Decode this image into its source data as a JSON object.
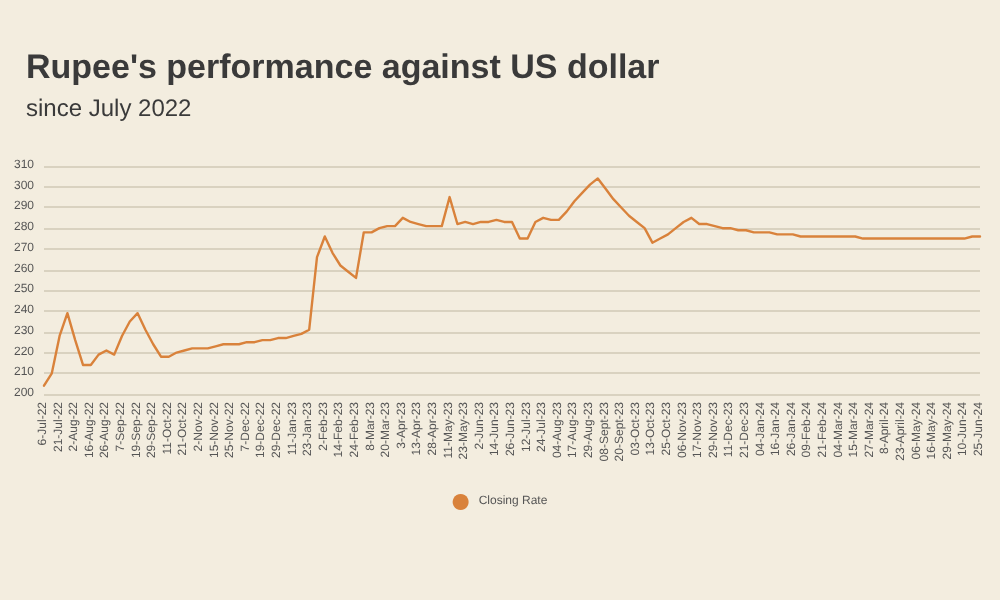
{
  "chart_data": {
    "type": "line",
    "title": "Rupee's performance against US dollar",
    "subtitle": "since July 2022",
    "categories": [
      "6-Jul-22",
      null,
      "21-Jul-22",
      null,
      "2-Aug-22",
      null,
      "16-Aug-22",
      null,
      "26-Aug-22",
      null,
      "7-Sep-22",
      null,
      "19-Sep-22",
      null,
      "29-Sep-22",
      null,
      "11-Oct-22",
      null,
      "21-Oct-22",
      null,
      "2-Nov-22",
      null,
      "15-Nov-22",
      null,
      "25-Nov-22",
      null,
      "7-Dec-22",
      null,
      "19-Dec-22",
      null,
      "29-Dec-22",
      null,
      "11-Jan-23",
      null,
      "23-Jan-23",
      null,
      "2-Feb-23",
      null,
      "14-Feb-23",
      null,
      "24-Feb-23",
      null,
      "8-Mar-23",
      null,
      "20-Mar-23",
      null,
      "3-Apr-23",
      null,
      "13-Apr-23",
      null,
      "28-Apr-23",
      null,
      "11-May-23",
      null,
      "23-May-23",
      null,
      "2-Jun-23",
      null,
      "14-Jun-23",
      null,
      "26-Jun-23",
      null,
      "12-Jul-23",
      null,
      "24-Jul-23",
      null,
      "04-Aug-23",
      null,
      "17-Aug-23",
      null,
      "29-Aug-23",
      null,
      "08-Sept-23",
      null,
      "20-Sept-23",
      null,
      "03-Oct-23",
      null,
      "13-Oct-23",
      null,
      "25-Oct-23",
      null,
      "06-Nov-23",
      null,
      "17-Nov-23",
      null,
      "29-Nov-23",
      null,
      "11-Dec-23",
      null,
      "21-Dec-23",
      null,
      "04-Jan-24",
      null,
      "16-Jan-24",
      null,
      "26-Jan-24",
      null,
      "09-Feb-24",
      null,
      "21-Feb-24",
      null,
      "04-Mar-24",
      null,
      "15-Mar-24",
      null,
      "27-Mar-24",
      null,
      "8-April-24",
      null,
      "23-April-24",
      null,
      "06-May-24",
      null,
      "16-May-24",
      null,
      "29-May-24",
      null,
      "10-Jun-24",
      null,
      "25-Jun-24"
    ],
    "series": [
      {
        "name": "Closing Rate",
        "color": "#d9823b",
        "values": [
          204,
          210,
          228,
          239,
          226,
          214,
          214,
          219,
          221,
          219,
          228,
          235,
          239,
          231,
          224,
          218,
          218,
          220,
          221,
          222,
          222,
          222,
          223,
          224,
          224,
          224,
          225,
          225,
          226,
          226,
          227,
          227,
          228,
          229,
          231,
          266,
          276,
          268,
          262,
          259,
          256,
          278,
          278,
          280,
          281,
          281,
          285,
          283,
          282,
          281,
          281,
          281,
          295,
          282,
          283,
          282,
          283,
          283,
          284,
          283,
          283,
          275,
          275,
          283,
          285,
          284,
          284,
          288,
          293,
          297,
          301,
          304,
          299,
          294,
          290,
          286,
          283,
          280,
          273,
          275,
          277,
          280,
          283,
          285,
          282,
          282,
          281,
          280,
          280,
          279,
          279,
          278,
          278,
          278,
          277,
          277,
          277,
          276,
          276,
          276,
          276,
          276,
          276,
          276,
          276,
          275,
          275,
          275,
          275,
          275,
          275,
          275,
          275,
          275,
          275,
          275,
          275,
          275,
          275,
          276,
          276
        ]
      }
    ],
    "ylim": [
      200,
      310
    ],
    "yticks": [
      200,
      210,
      220,
      230,
      240,
      250,
      260,
      270,
      280,
      290,
      300,
      310
    ],
    "grid": "y",
    "legend": "bottom",
    "marker": "none",
    "line_style": "solid"
  }
}
